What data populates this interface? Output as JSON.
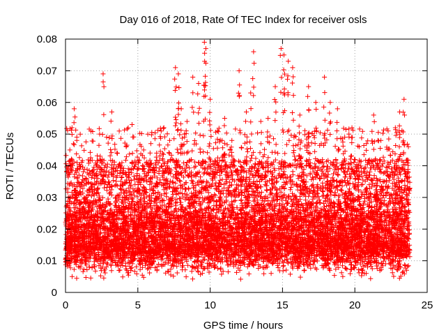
{
  "chart_data": {
    "type": "scatter",
    "title": "Day 016 of 2018, Rate Of TEC Index for receiver osls",
    "xlabel": "GPS time / hours",
    "ylabel": "ROTI / TECUs",
    "xlim": [
      0,
      25
    ],
    "ylim": [
      0,
      0.08
    ],
    "x_ticks": [
      0,
      5,
      10,
      15,
      20,
      25
    ],
    "x_tick_labels": [
      "0",
      "5",
      "10",
      "15",
      "20",
      "25"
    ],
    "y_ticks": [
      0,
      0.01,
      0.02,
      0.03,
      0.04,
      0.05,
      0.06,
      0.07,
      0.08
    ],
    "y_tick_labels": [
      "0",
      "0.01",
      "0.02",
      "0.03",
      "0.04",
      "0.05",
      "0.06",
      "0.07",
      "0.08"
    ],
    "grid": true,
    "marker": "+",
    "color": "#ff0000",
    "data_extent": {
      "x_start": 0.0,
      "x_end": 23.8
    },
    "series": [
      {
        "name": "ROTI",
        "x": [
          0.05,
          0.15,
          0.3,
          0.45,
          0.6,
          0.8,
          1.0,
          1.3,
          1.6,
          2.0,
          2.4,
          2.6,
          3.0,
          3.2,
          3.5,
          3.9,
          4.2,
          4.6,
          5.0,
          5.4,
          5.9,
          6.3,
          6.8,
          7.2,
          7.6,
          7.8,
          8.0,
          8.4,
          8.8,
          9.2,
          9.6,
          9.7,
          10.0,
          10.5,
          11.0,
          11.5,
          12.0,
          12.5,
          12.8,
          13.0,
          13.5,
          14.0,
          14.5,
          14.9,
          15.1,
          15.4,
          15.7,
          16.2,
          16.8,
          17.3,
          17.9,
          18.3,
          18.8,
          19.3,
          19.8,
          20.3,
          20.8,
          21.3,
          21.8,
          22.3,
          22.8,
          23.1,
          23.4,
          23.7
        ],
        "y": [
          0.021,
          0.037,
          0.045,
          0.052,
          0.058,
          0.041,
          0.025,
          0.03,
          0.028,
          0.036,
          0.043,
          0.069,
          0.038,
          0.057,
          0.034,
          0.041,
          0.046,
          0.053,
          0.039,
          0.045,
          0.047,
          0.044,
          0.052,
          0.048,
          0.071,
          0.069,
          0.058,
          0.054,
          0.068,
          0.066,
          0.079,
          0.077,
          0.061,
          0.051,
          0.055,
          0.048,
          0.07,
          0.057,
          0.063,
          0.076,
          0.054,
          0.055,
          0.065,
          0.077,
          0.075,
          0.073,
          0.071,
          0.056,
          0.065,
          0.06,
          0.068,
          0.06,
          0.058,
          0.049,
          0.052,
          0.046,
          0.047,
          0.056,
          0.048,
          0.051,
          0.052,
          0.057,
          0.061,
          0.046
        ]
      }
    ]
  }
}
